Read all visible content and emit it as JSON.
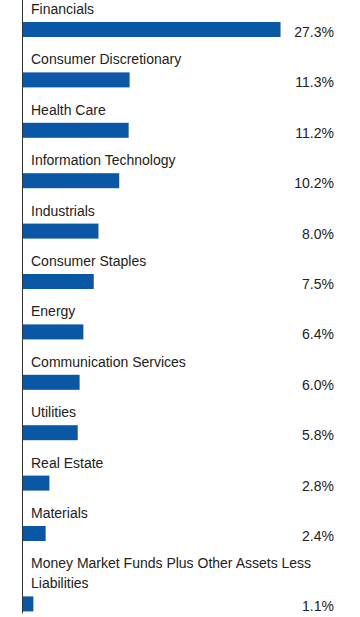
{
  "chart_data": {
    "type": "bar",
    "orientation": "horizontal",
    "categories": [
      "Financials",
      "Consumer Discretionary",
      "Health Care",
      "Information Technology",
      "Industrials",
      "Consumer Staples",
      "Energy",
      "Communication Services",
      "Utilities",
      "Real Estate",
      "Materials",
      "Money Market Funds Plus Other Assets Less Liabilities"
    ],
    "values": [
      27.3,
      11.3,
      11.2,
      10.2,
      8.0,
      7.5,
      6.4,
      6.0,
      5.8,
      2.8,
      2.4,
      1.1
    ],
    "value_labels": [
      "27.3%",
      "11.3%",
      "11.2%",
      "10.2%",
      "8.0%",
      "7.5%",
      "6.4%",
      "6.0%",
      "5.8%",
      "2.8%",
      "2.4%",
      "1.1%"
    ],
    "color": "#0a57a6",
    "xlim": [
      0,
      30
    ],
    "data_labels": true,
    "tick_labels": false,
    "grid": false
  }
}
